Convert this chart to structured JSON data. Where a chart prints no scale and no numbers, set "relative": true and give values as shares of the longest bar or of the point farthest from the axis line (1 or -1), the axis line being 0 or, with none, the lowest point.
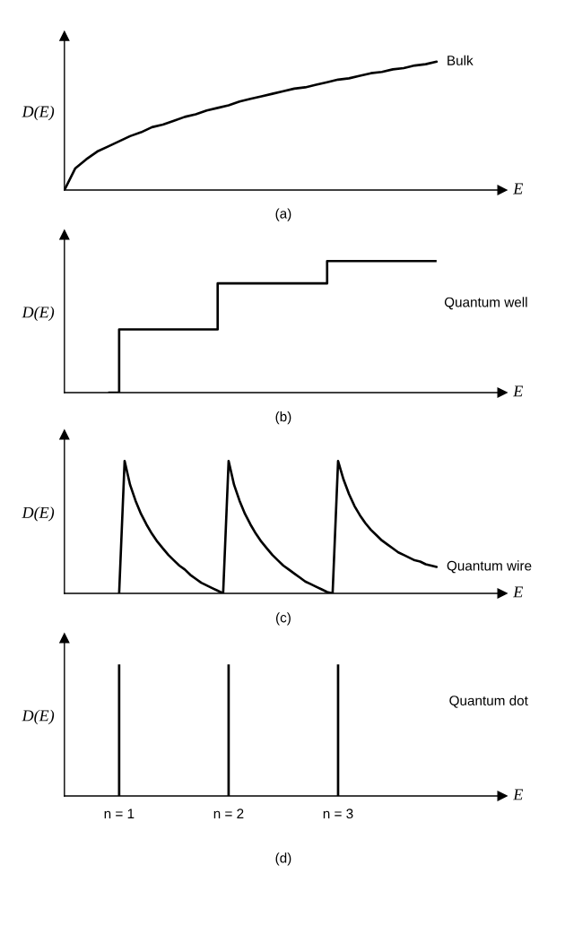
{
  "chart_data": [
    {
      "type": "line",
      "relative": true,
      "xlabel": "E",
      "ylabel": "D(E)",
      "annotations": [
        "(a)"
      ],
      "categories": [
        null,
        null,
        null,
        null,
        null,
        null,
        null,
        null,
        null,
        null,
        null,
        null,
        null,
        null,
        null,
        null,
        null,
        null,
        null,
        null,
        null,
        null,
        null,
        null,
        null,
        null,
        null,
        null,
        null,
        null,
        null,
        null,
        null,
        null,
        null,
        null,
        null,
        null,
        null,
        null
      ],
      "series": [
        {
          "name": "Bulk",
          "color": "#000000",
          "values": [
            0,
            0.17,
            0.24,
            0.3,
            0.34,
            0.38,
            0.42,
            0.45,
            0.49,
            0.51,
            0.54,
            0.57,
            0.59,
            0.62,
            0.64,
            0.66,
            0.69,
            0.71,
            0.73,
            0.75,
            0.77,
            0.79,
            0.8,
            0.82,
            0.84,
            0.86,
            0.87,
            0.89,
            0.91,
            0.92,
            0.94,
            0.95,
            0.97,
            0.98,
            1.0,
            null,
            null,
            null,
            null,
            null
          ]
        }
      ]
    },
    {
      "type": "step",
      "relative": true,
      "xlabel": "E",
      "ylabel": "D(E)",
      "annotations": [
        "(b)"
      ],
      "categories": [
        null,
        null,
        null,
        null,
        null,
        null,
        null,
        null,
        null,
        null,
        null,
        null,
        null,
        null,
        null,
        null,
        null,
        null,
        null,
        null,
        null,
        null,
        null,
        null,
        null,
        null,
        null,
        null,
        null,
        null,
        null,
        null,
        null,
        null,
        null,
        null,
        null,
        null,
        null,
        null
      ],
      "series": [
        {
          "name": "Quantum well",
          "color": "#000000",
          "values": [
            null,
            null,
            null,
            null,
            0,
            0.48,
            0.48,
            0.48,
            0.48,
            0.48,
            0.48,
            0.48,
            0.48,
            0.48,
            0.83,
            0.83,
            0.83,
            0.83,
            0.83,
            0.83,
            0.83,
            0.83,
            0.83,
            0.83,
            1.0,
            1.0,
            1.0,
            1.0,
            1.0,
            1.0,
            1.0,
            1.0,
            1.0,
            1.0,
            1.0,
            null,
            null,
            null,
            null,
            null
          ]
        }
      ]
    },
    {
      "type": "line",
      "relative": true,
      "xlabel": "E",
      "ylabel": "D(E)",
      "annotations": [
        "(c)"
      ],
      "categories": [
        null,
        null,
        null,
        null,
        null,
        null,
        null,
        null,
        null,
        null,
        null,
        null,
        null,
        null,
        null,
        null,
        null,
        null,
        null,
        null,
        null,
        null,
        null,
        null,
        null,
        null,
        null,
        null,
        null,
        null,
        null,
        null,
        null,
        null,
        null,
        null,
        null,
        null,
        null,
        null,
        null,
        null,
        null,
        null,
        null,
        null,
        null,
        null,
        null,
        null,
        null,
        null,
        null,
        null,
        null,
        null,
        null,
        null,
        null,
        null,
        null,
        null,
        null,
        null,
        null,
        null,
        null,
        null,
        null,
        null,
        null,
        null,
        null,
        null,
        null,
        null,
        null,
        null,
        null,
        null
      ],
      "series": [
        {
          "name": "Quantum wire",
          "color": "#000000",
          "values": [
            null,
            null,
            null,
            null,
            null,
            null,
            null,
            null,
            null,
            null,
            0,
            1.0,
            0.82,
            0.7,
            0.6,
            0.52,
            0.45,
            0.39,
            0.34,
            0.29,
            0.25,
            0.21,
            0.18,
            0.14,
            0.11,
            0.08,
            0.06,
            0.04,
            0.02,
            0,
            1.0,
            0.82,
            0.7,
            0.6,
            0.52,
            0.45,
            0.39,
            0.34,
            0.29,
            0.25,
            0.21,
            0.18,
            0.15,
            0.12,
            0.09,
            0.07,
            0.05,
            0.03,
            0.01,
            0,
            1.0,
            0.86,
            0.75,
            0.66,
            0.59,
            0.53,
            0.48,
            0.44,
            0.4,
            0.37,
            0.34,
            0.31,
            0.29,
            0.27,
            0.25,
            0.24,
            0.22,
            0.21,
            0.2,
            null,
            null,
            null,
            null,
            null,
            null,
            null,
            null,
            null,
            null,
            null
          ]
        }
      ]
    },
    {
      "type": "bar",
      "relative": true,
      "xlabel": "E",
      "ylabel": "D(E)",
      "annotations": [
        "(d)"
      ],
      "categories": [
        "n = 1",
        "n = 2",
        "n = 3",
        null
      ],
      "series": [
        {
          "name": "Quantum dot",
          "color": "#000000",
          "values": [
            1,
            1,
            1,
            null
          ]
        }
      ]
    }
  ]
}
